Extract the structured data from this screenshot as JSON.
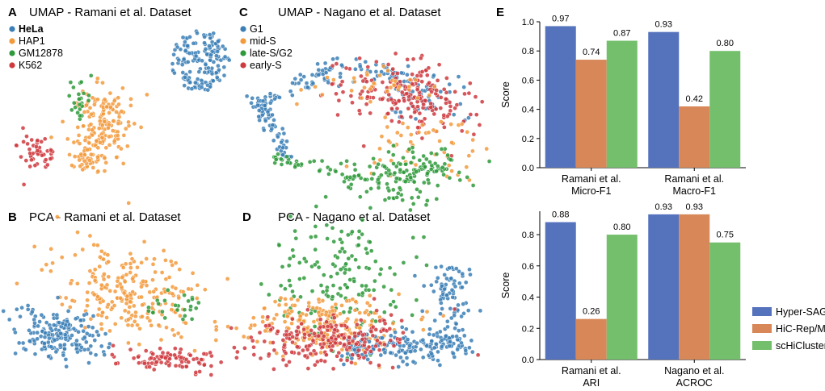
{
  "panels": {
    "A": {
      "letter": "A",
      "title": "UMAP - Ramani et al. Dataset"
    },
    "B": {
      "letter": "B",
      "title": "PCA - Ramani et al. Dataset"
    },
    "C": {
      "letter": "C",
      "title": "UMAP - Nagano et al. Dataset"
    },
    "D": {
      "letter": "D",
      "title": "PCA - Nagano et al. Dataset"
    },
    "E": {
      "letter": "E"
    }
  },
  "legends": {
    "ramani": [
      {
        "label": "HeLa",
        "color": "#3b7fb6"
      },
      {
        "label": "HAP1",
        "color": "#f39a3c"
      },
      {
        "label": "GM12878",
        "color": "#2e9a3a"
      },
      {
        "label": "K562",
        "color": "#cf3a3e"
      }
    ],
    "nagano": [
      {
        "label": "G1",
        "color": "#3b7fb6"
      },
      {
        "label": "mid-S",
        "color": "#f39a3c"
      },
      {
        "label": "late-S/G2",
        "color": "#2e9a3a"
      },
      {
        "label": "early-S",
        "color": "#cf3a3e"
      }
    ],
    "methods": [
      {
        "label": "Hyper-SAGNN",
        "color": "#5572bd"
      },
      {
        "label": "HiC-Rep/MDS",
        "color": "#d78758"
      },
      {
        "label": "scHiCluster",
        "color": "#73bf6b"
      }
    ]
  },
  "chart_data": [
    {
      "type": "bar",
      "panel": "E-top",
      "ylabel": "Score",
      "ylim": [
        0,
        1.0
      ],
      "yticks": [
        "0.0",
        "0.2",
        "0.4",
        "0.6",
        "0.8",
        "1.0"
      ],
      "categories": [
        [
          "Ramani et al.",
          "Micro-F1"
        ],
        [
          "Ramani et al.",
          "Macro-F1"
        ]
      ],
      "series": [
        {
          "name": "Hyper-SAGNN",
          "values": [
            0.97,
            0.93
          ],
          "labels": [
            "0.97",
            "0.93"
          ]
        },
        {
          "name": "HiC-Rep/MDS",
          "values": [
            0.74,
            0.42
          ],
          "labels": [
            "0.74",
            "0.42"
          ]
        },
        {
          "name": "scHiCluster",
          "values": [
            0.87,
            0.8
          ],
          "labels": [
            "0.87",
            "0.80"
          ]
        }
      ]
    },
    {
      "type": "bar",
      "panel": "E-bottom",
      "ylabel": "Score",
      "ylim": [
        0,
        0.95
      ],
      "yticks": [
        "0.0",
        "0.2",
        "0.4",
        "0.6",
        "0.8"
      ],
      "categories": [
        [
          "Ramani et al.",
          "ARI"
        ],
        [
          "Nagano et al.",
          "ACROC"
        ]
      ],
      "series": [
        {
          "name": "Hyper-SAGNN",
          "values": [
            0.88,
            0.93
          ],
          "labels": [
            "0.88",
            "0.93"
          ]
        },
        {
          "name": "HiC-Rep/MDS",
          "values": [
            0.26,
            0.93
          ],
          "labels": [
            "0.26",
            "0.93"
          ]
        },
        {
          "name": "scHiCluster",
          "values": [
            0.8,
            0.75
          ],
          "labels": [
            "0.80",
            "0.75"
          ]
        }
      ],
      "legend": "right"
    },
    {
      "type": "scatter",
      "panel": "A",
      "clusters": [
        {
          "name": "HeLa",
          "n": 160
        },
        {
          "name": "HAP1",
          "n": 200
        },
        {
          "name": "GM12878",
          "n": 25
        },
        {
          "name": "K562",
          "n": 50
        }
      ]
    },
    {
      "type": "scatter",
      "panel": "B",
      "clusters": [
        {
          "name": "HeLa",
          "n": 190
        },
        {
          "name": "HAP1",
          "n": 240
        },
        {
          "name": "GM12878",
          "n": 25
        },
        {
          "name": "K562",
          "n": 90
        }
      ]
    },
    {
      "type": "scatter",
      "panel": "C",
      "clusters": [
        {
          "name": "G1",
          "n": 220
        },
        {
          "name": "mid-S",
          "n": 90
        },
        {
          "name": "late-S/G2",
          "n": 190
        },
        {
          "name": "early-S",
          "n": 190
        }
      ]
    },
    {
      "type": "scatter",
      "panel": "D",
      "clusters": [
        {
          "name": "G1",
          "n": 260
        },
        {
          "name": "mid-S",
          "n": 230
        },
        {
          "name": "late-S/G2",
          "n": 160
        },
        {
          "name": "early-S",
          "n": 220
        }
      ]
    }
  ]
}
